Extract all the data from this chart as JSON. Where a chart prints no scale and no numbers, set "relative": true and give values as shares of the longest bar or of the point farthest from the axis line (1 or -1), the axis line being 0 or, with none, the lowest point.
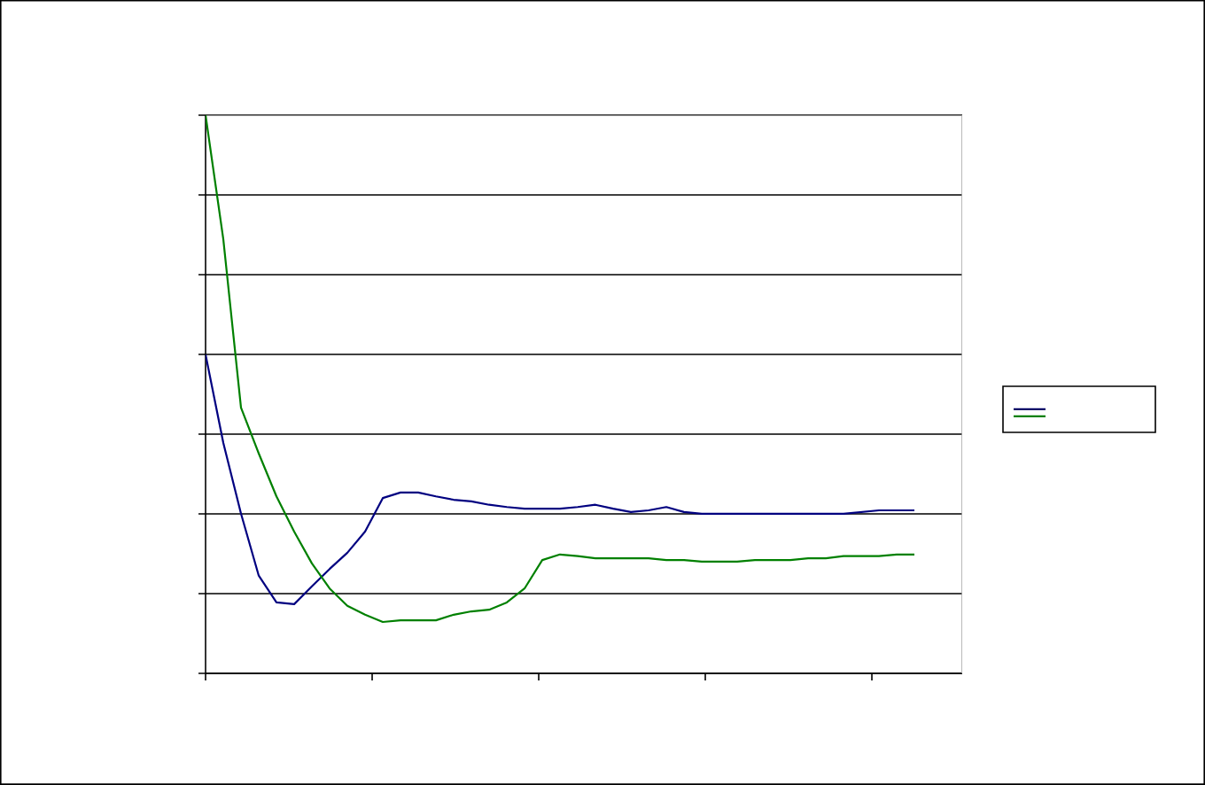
{
  "chart_data": {
    "type": "line",
    "relative": true,
    "grid": "y",
    "categories": [
      null,
      null,
      null,
      null,
      null,
      null,
      null,
      null,
      null,
      null,
      null,
      null,
      null,
      null,
      null,
      null,
      null,
      null,
      null,
      null,
      null,
      null,
      null,
      null,
      null,
      null,
      null,
      null,
      null,
      null,
      null,
      null,
      null,
      null,
      null,
      null,
      null,
      null,
      null,
      null,
      null
    ],
    "series": [
      {
        "color": "#000080",
        "values": [
          0.571,
          0.413,
          0.286,
          0.175,
          0.127,
          0.124,
          0.156,
          0.187,
          0.216,
          0.254,
          0.314,
          0.324,
          0.324,
          0.317,
          0.311,
          0.308,
          0.302,
          0.298,
          0.295,
          0.295,
          0.295,
          0.298,
          0.302,
          0.295,
          0.289,
          0.292,
          0.298,
          0.289,
          0.286,
          0.286,
          0.286,
          0.286,
          0.286,
          0.286,
          0.286,
          0.286,
          0.286,
          0.289,
          0.292,
          0.292,
          0.292
        ]
      },
      {
        "color": "#008000",
        "values": [
          1.0,
          0.778,
          0.476,
          0.394,
          0.317,
          0.254,
          0.197,
          0.152,
          0.121,
          0.105,
          0.092,
          0.095,
          0.095,
          0.095,
          0.105,
          0.111,
          0.114,
          0.127,
          0.152,
          0.203,
          0.213,
          0.21,
          0.206,
          0.206,
          0.206,
          0.206,
          0.203,
          0.203,
          0.2,
          0.2,
          0.2,
          0.203,
          0.203,
          0.203,
          0.206,
          0.206,
          0.21,
          0.21,
          0.21,
          0.213,
          0.213
        ]
      }
    ]
  }
}
